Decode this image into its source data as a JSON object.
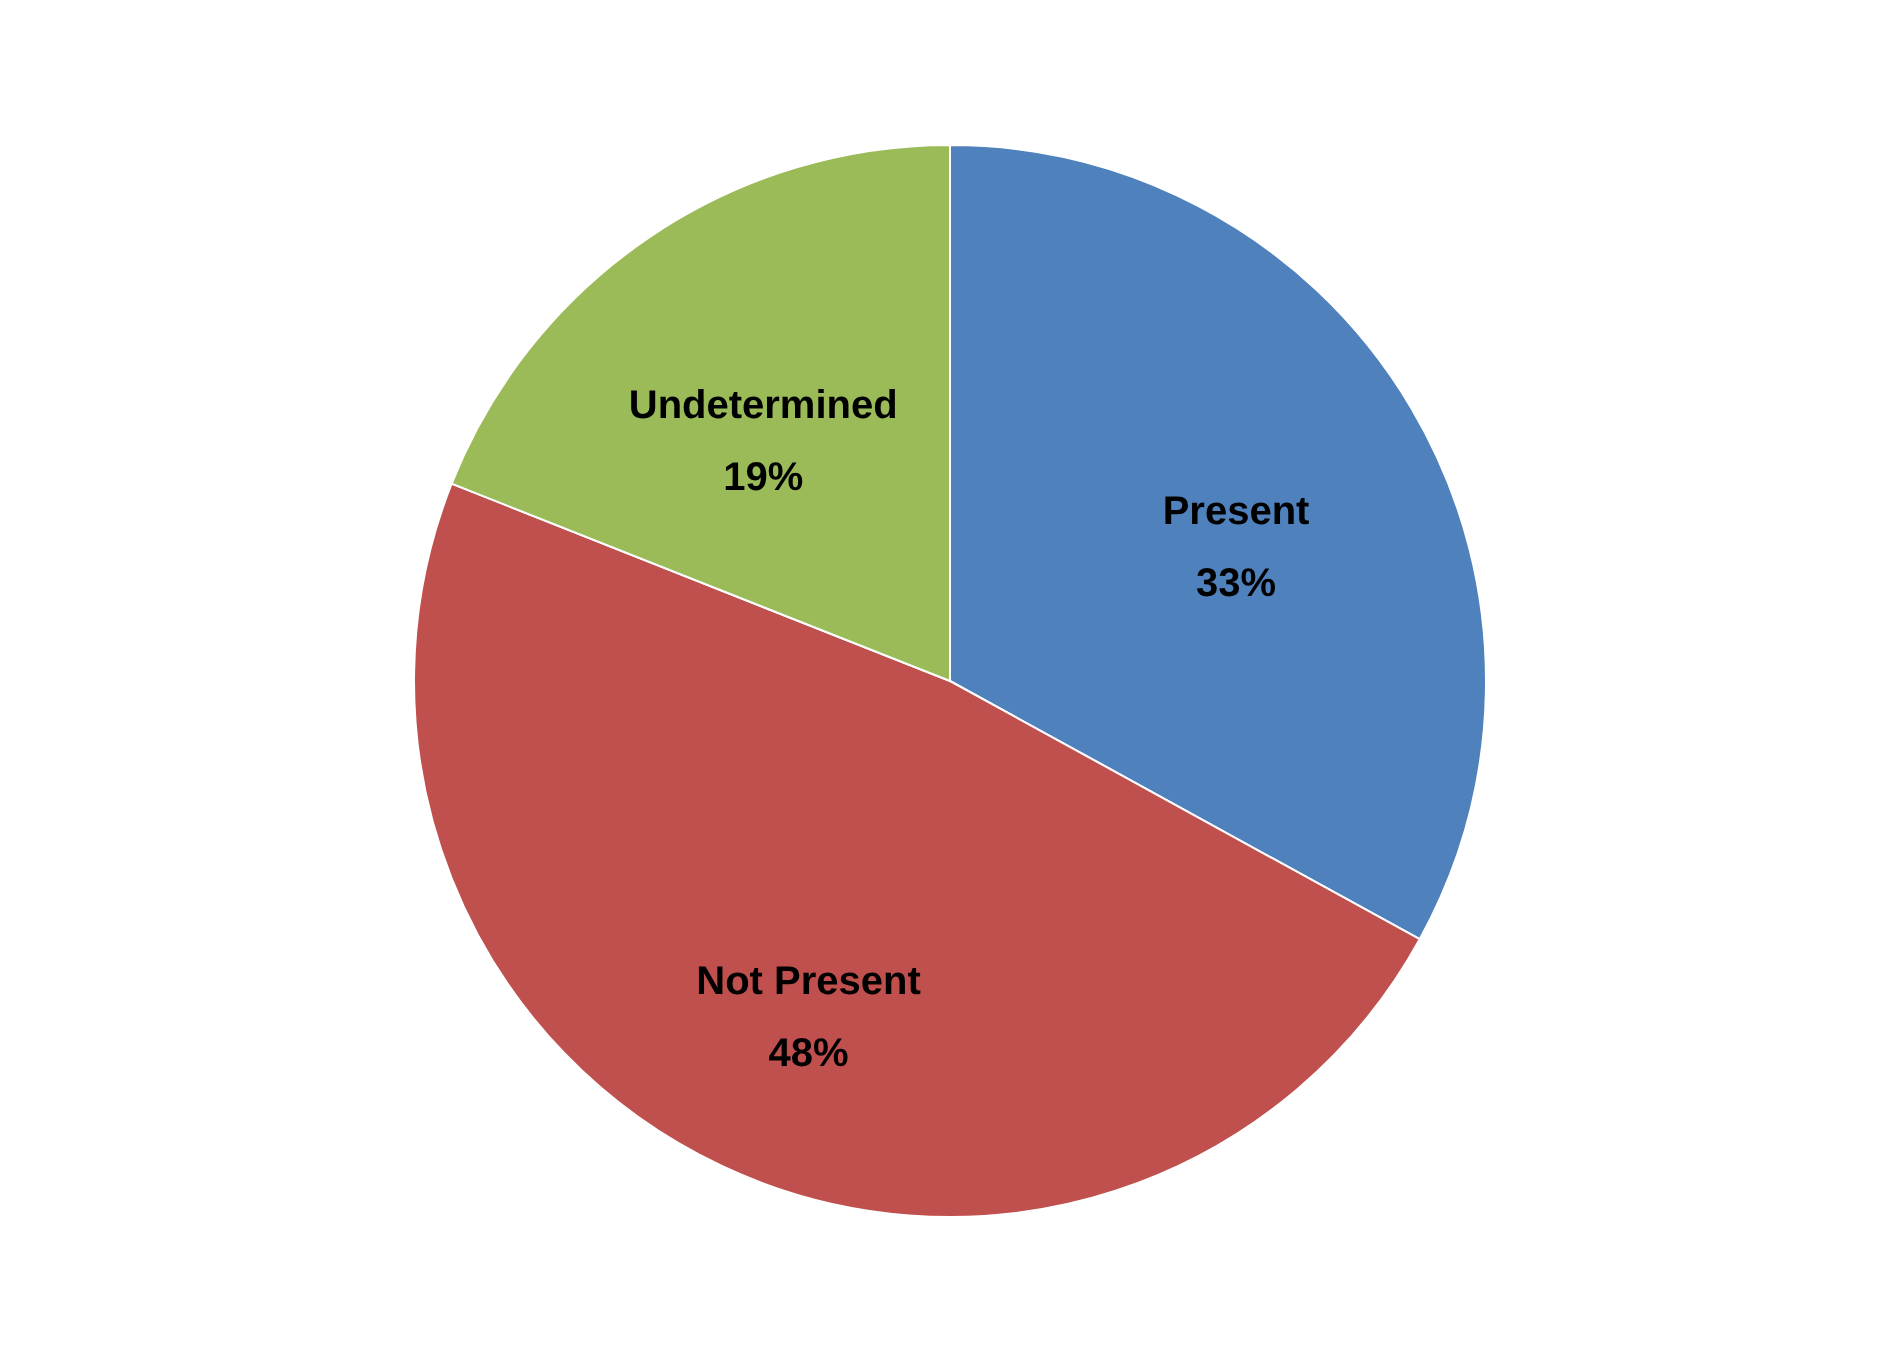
{
  "chart_data": {
    "type": "pie",
    "categories": [
      "Present",
      "Not Present",
      "Undetermined"
    ],
    "values": [
      33,
      48,
      19
    ],
    "colors": [
      "#4f81bd",
      "#c0504d",
      "#9bbb59"
    ],
    "value_labels": [
      "33%",
      "48%",
      "19%"
    ],
    "legend": false
  }
}
